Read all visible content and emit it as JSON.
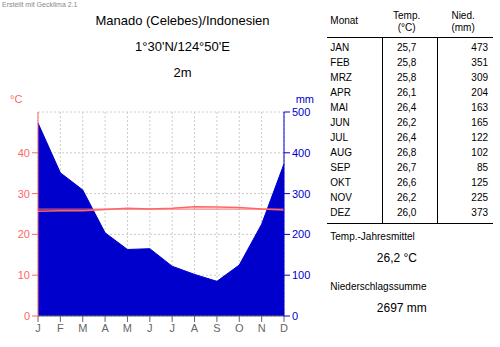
{
  "chart_data": {
    "type": "line",
    "title": "Manado (Celebes)/Indonesien",
    "subtitle": [
      "1°30'N/124°50'E",
      "2m"
    ],
    "annotations": [
      "Erstellt mit Gecklima 2.1"
    ],
    "categories": [
      "J",
      "F",
      "M",
      "A",
      "M",
      "J",
      "J",
      "A",
      "S",
      "O",
      "N",
      "D"
    ],
    "series": [
      {
        "name": "Nied.",
        "type": "area",
        "color": "#0000cc",
        "axis": "y2",
        "values": [
          473,
          351,
          309,
          204,
          163,
          165,
          122,
          102,
          85,
          125,
          225,
          373
        ]
      },
      {
        "name": "Temp.",
        "type": "line",
        "color": "#ff6666",
        "values": [
          25.7,
          25.8,
          25.8,
          26.1,
          26.4,
          26.2,
          26.4,
          26.8,
          26.7,
          26.6,
          26.2,
          26.0
        ],
        "annual_mean": 26.2
      }
    ],
    "y_label": "°C",
    "y2_label": "mm",
    "ylim": [
      0,
      50
    ],
    "yticks": [
      0,
      10,
      20,
      30,
      40
    ],
    "y2lim": [
      0,
      500
    ],
    "y2ticks": [
      0,
      100,
      200,
      300,
      400,
      500
    ],
    "grid": true,
    "table": {
      "header": [
        [
          "Monat"
        ],
        [
          "Temp.",
          "(°C)"
        ],
        [
          "Nied.",
          "(mm)"
        ]
      ],
      "rows": [
        [
          "JAN",
          "25,7",
          "473"
        ],
        [
          "FEB",
          "25,8",
          "351"
        ],
        [
          "MRZ",
          "25,8",
          "309"
        ],
        [
          "APR",
          "26,1",
          "204"
        ],
        [
          "MAI",
          "26,4",
          "163"
        ],
        [
          "JUN",
          "26,2",
          "165"
        ],
        [
          "JUL",
          "26,4",
          "122"
        ],
        [
          "AUG",
          "26,8",
          "102"
        ],
        [
          "SEP",
          "26,7",
          "85"
        ],
        [
          "OKT",
          "26,6",
          "125"
        ],
        [
          "NOV",
          "26,2",
          "225"
        ],
        [
          "DEZ",
          "26,0",
          "373"
        ]
      ],
      "footer": [
        [
          "Temp.-Jahresmittel",
          "26,2 °C"
        ],
        [
          "Niederschlagssumme",
          "2697 mm"
        ]
      ]
    }
  }
}
